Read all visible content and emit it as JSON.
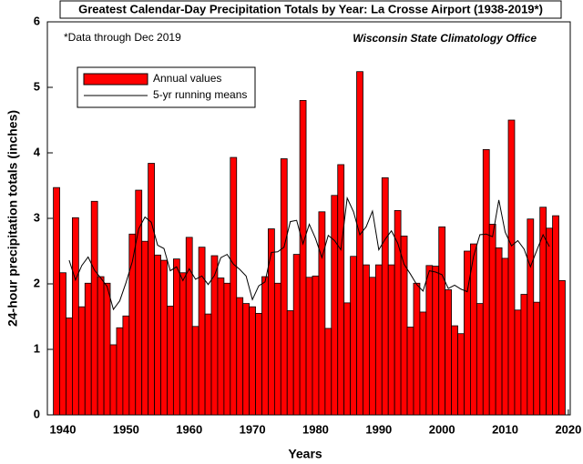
{
  "chart_data": {
    "type": "bar",
    "title": "Greatest Calendar-Day Precipitation Totals by Year: La Crosse Airport (1938-2019*)",
    "annotations": [
      "*Data through Dec 2019",
      "Wisconsin State Climatology Office"
    ],
    "x_label": "Years",
    "y_label": "24-hour precipitation totals (inches)",
    "x": [
      1939,
      1940,
      1941,
      1942,
      1943,
      1944,
      1945,
      1946,
      1947,
      1948,
      1949,
      1950,
      1951,
      1952,
      1953,
      1954,
      1955,
      1956,
      1957,
      1958,
      1959,
      1960,
      1961,
      1962,
      1963,
      1964,
      1965,
      1966,
      1967,
      1968,
      1969,
      1970,
      1971,
      1972,
      1973,
      1974,
      1975,
      1976,
      1977,
      1978,
      1979,
      1980,
      1981,
      1982,
      1983,
      1984,
      1985,
      1986,
      1987,
      1988,
      1989,
      1990,
      1991,
      1992,
      1993,
      1994,
      1995,
      1996,
      1997,
      1998,
      1999,
      2000,
      2001,
      2002,
      2003,
      2004,
      2005,
      2006,
      2007,
      2008,
      2009,
      2010,
      2011,
      2012,
      2013,
      2014,
      2015,
      2016,
      2017,
      2018,
      2019
    ],
    "series": [
      {
        "name": "Annual values",
        "type": "bar",
        "color": "#ff0000",
        "values": [
          3.47,
          2.17,
          1.48,
          3.01,
          1.65,
          2.01,
          3.26,
          2.11,
          2.01,
          1.07,
          1.33,
          1.51,
          2.76,
          3.43,
          2.65,
          3.84,
          2.44,
          2.36,
          1.66,
          2.38,
          2.17,
          2.71,
          1.35,
          2.56,
          1.54,
          2.43,
          2.09,
          2.01,
          3.93,
          1.79,
          1.7,
          1.65,
          1.55,
          2.11,
          2.84,
          2.01,
          3.91,
          1.59,
          2.45,
          4.8,
          2.1,
          2.12,
          3.1,
          1.32,
          3.35,
          3.82,
          1.71,
          2.42,
          5.24,
          2.29,
          2.1,
          2.29,
          3.62,
          2.29,
          3.12,
          2.73,
          1.34,
          2.01,
          1.57,
          2.28,
          2.27,
          2.87,
          1.91,
          1.36,
          1.24,
          2.5,
          2.61,
          1.7,
          4.05,
          2.91,
          2.55,
          2.39,
          4.5,
          1.6,
          1.84,
          2.99,
          1.72,
          3.17,
          2.85,
          3.04,
          2.05
        ]
      },
      {
        "name": "5-yr running means",
        "type": "line",
        "color": "#000000",
        "values": [
          null,
          null,
          2.36,
          2.06,
          2.28,
          2.41,
          2.21,
          2.09,
          1.96,
          1.61,
          1.74,
          2.02,
          2.34,
          2.84,
          3.02,
          2.94,
          2.59,
          2.54,
          2.2,
          2.26,
          2.05,
          2.23,
          2.07,
          2.12,
          1.99,
          2.13,
          2.4,
          2.45,
          2.3,
          2.22,
          2.12,
          1.76,
          1.97,
          2.03,
          2.48,
          2.49,
          2.56,
          2.95,
          2.97,
          2.61,
          2.91,
          2.69,
          2.4,
          2.74,
          2.66,
          2.52,
          3.31,
          3.1,
          2.75,
          2.87,
          3.11,
          2.52,
          2.68,
          2.81,
          2.62,
          2.3,
          2.15,
          1.99,
          1.89,
          2.2,
          2.18,
          2.14,
          1.93,
          1.98,
          1.92,
          1.88,
          2.42,
          2.75,
          2.76,
          2.72,
          3.28,
          2.79,
          2.58,
          2.66,
          2.53,
          2.26,
          2.51,
          2.75,
          2.57,
          null,
          null
        ]
      }
    ],
    "xlim": [
      1937.55,
      2020.3
    ],
    "ylim": [
      0,
      6
    ],
    "xticks": [
      1940,
      1950,
      1960,
      1970,
      1980,
      1990,
      2000,
      2010,
      2020
    ],
    "yticks": [
      0,
      1,
      2,
      3,
      4,
      5,
      6
    ],
    "legend": "upper left"
  }
}
